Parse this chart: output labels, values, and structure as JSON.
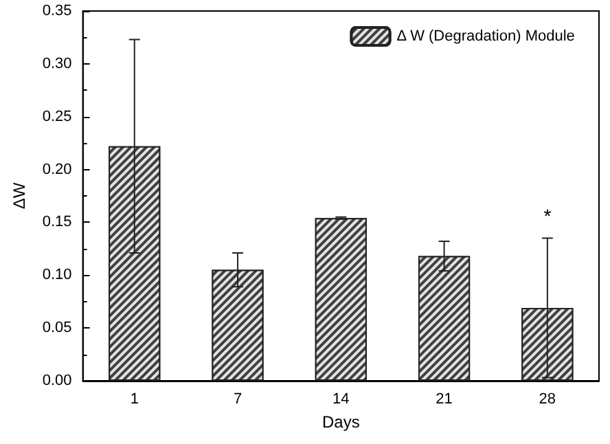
{
  "chart_data": {
    "type": "bar",
    "xlabel": "Days",
    "ylabel": "ΔW",
    "categories": [
      "1",
      "7",
      "14",
      "21",
      "28"
    ],
    "series": [
      {
        "name": "Δ W (Degradation) Module",
        "color": "#404040",
        "values": [
          0.222,
          0.105,
          0.154,
          0.118,
          0.069
        ],
        "errors": [
          0.101,
          0.016,
          0.001,
          0.014,
          0.066
        ]
      }
    ],
    "ylim": [
      0,
      0.35
    ],
    "yticks": [
      {
        "value": 0,
        "label": "0.00"
      },
      {
        "value": 0.05,
        "label": "0.05"
      },
      {
        "value": 0.1,
        "label": "0.10"
      },
      {
        "value": 0.15,
        "label": "0.15"
      },
      {
        "value": 0.2,
        "label": "0.20"
      },
      {
        "value": 0.25,
        "label": "0.25"
      },
      {
        "value": 0.3,
        "label": "0.30"
      },
      {
        "value": 0.35,
        "label": "0.35"
      }
    ],
    "annotations": [
      "*"
    ],
    "legend": "top right",
    "grid": false
  }
}
